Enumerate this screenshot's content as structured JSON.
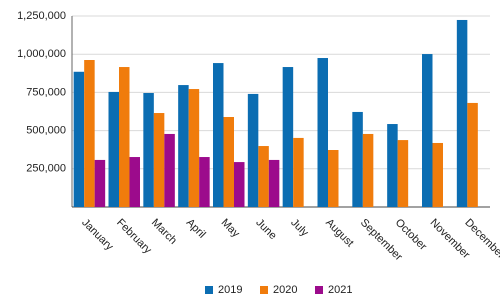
{
  "chart_data": {
    "type": "bar",
    "categories": [
      "January",
      "February",
      "March",
      "April",
      "May",
      "June",
      "July",
      "August",
      "September",
      "October",
      "November",
      "December"
    ],
    "series": [
      {
        "name": "2019",
        "color": "#0b6db2",
        "values": [
          885000,
          753000,
          746000,
          798000,
          942000,
          740000,
          916000,
          975000,
          622000,
          543000,
          1001000,
          1224000
        ]
      },
      {
        "name": "2020",
        "color": "#f07c0c",
        "values": [
          962000,
          916000,
          615000,
          772000,
          589000,
          399000,
          452000,
          373000,
          478000,
          438000,
          419000,
          681000
        ]
      },
      {
        "name": "2021",
        "color": "#9c0b8c",
        "values": [
          308000,
          327000,
          478000,
          327000,
          294000,
          308000,
          null,
          null,
          null,
          null,
          null,
          null
        ]
      }
    ],
    "ylim": [
      0,
      1250000
    ],
    "yticks": [
      {
        "value": 0,
        "label": ""
      },
      {
        "value": 250000,
        "label": "250,000"
      },
      {
        "value": 500000,
        "label": "500,000"
      },
      {
        "value": 750000,
        "label": "750,000"
      },
      {
        "value": 1000000,
        "label": "1,000,000"
      },
      {
        "value": 1250000,
        "label": "1,250,000"
      }
    ],
    "grid": true,
    "legend": "bottom"
  }
}
